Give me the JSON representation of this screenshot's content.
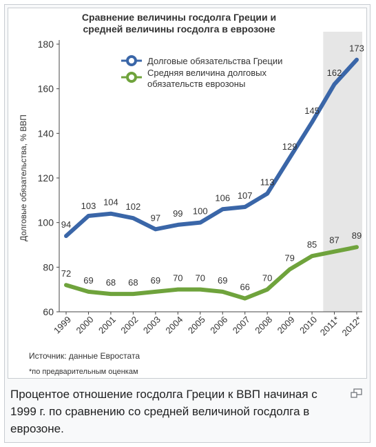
{
  "caption": "Процентое отношение госдолга Греции к ВВП начиная с 1999 г. по сравнению со средней величиной госдолга в еврозоне.",
  "magnify_icon": "enlarge-icon",
  "chart_data": {
    "type": "line",
    "title_line1": "Сравнение величины госдолга Греции и",
    "title_line2": "средней величины госдолга в еврозоне",
    "ylabel": "Долговые обязательства, % ВВП",
    "xlabel": "",
    "ylim": [
      60,
      180
    ],
    "yticks": [
      60,
      80,
      100,
      120,
      140,
      160,
      180
    ],
    "categories": [
      "1999",
      "2000",
      "2001",
      "2002",
      "2003",
      "2004",
      "2005",
      "2006",
      "2007",
      "2008",
      "2009",
      "2010",
      "2011*",
      "2012*"
    ],
    "highlight_from_index": 12,
    "legend_placement": "top",
    "grid": false,
    "series": [
      {
        "name": "Долговые обязательства Греции",
        "color": "#3a66a8",
        "values": [
          94,
          103,
          104,
          102,
          97,
          99,
          100,
          106,
          107,
          113,
          129,
          145,
          162,
          173
        ],
        "labels": [
          "94",
          "103",
          "104",
          "102",
          "97",
          "99",
          "100",
          "106",
          "107",
          "113",
          "129",
          "145",
          "162",
          "173"
        ]
      },
      {
        "name_line1": "Средняя величина долговых",
        "name_line2": "обязательств еврозоны",
        "color": "#6fa33c",
        "values": [
          72,
          69,
          68,
          68,
          69,
          70,
          70,
          69,
          66,
          70,
          79,
          85,
          87,
          89
        ],
        "labels": [
          "72",
          "69",
          "68",
          "68",
          "69",
          "70",
          "70",
          "69",
          "66",
          "70",
          "79",
          "85",
          "87",
          "89"
        ]
      }
    ],
    "source": "Источник: данные Евростата",
    "footnote": "*по предварительным оценкам"
  }
}
